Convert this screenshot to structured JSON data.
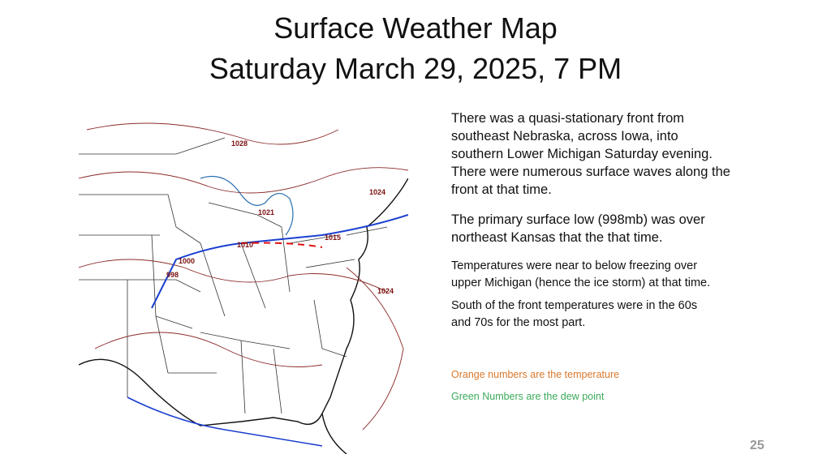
{
  "title_lines": [
    "Surface Weather Map",
    "Saturday March 29, 2025, 7 PM"
  ],
  "paragraphs": [
    {
      "lines": [
        "There was a quasi-stationary front from",
        "southeast Nebraska, across Iowa, into",
        "southern Lower Michigan Saturday evening.",
        "There were numerous surface waves along the",
        "front at that time."
      ]
    },
    {
      "lines": [
        "The primary surface low (998mb) was over",
        "northeast Kansas that the that time."
      ]
    },
    {
      "lines": [
        "Temperatures were near to below freezing over",
        "upper Michigan (hence the ice storm) at that time."
      ]
    },
    {
      "lines": [
        "South of the front temperatures were in the 60s",
        "and 70s for the most part."
      ]
    }
  ],
  "legend": {
    "temperature": "Orange numbers are the temperature",
    "dew_point": "Green Numbers are the dew point"
  },
  "map": {
    "pressure_labels": [
      "1028",
      "1021",
      "1015",
      "1010",
      "1000",
      "998",
      "1024",
      "1024"
    ]
  },
  "page_number": "25"
}
